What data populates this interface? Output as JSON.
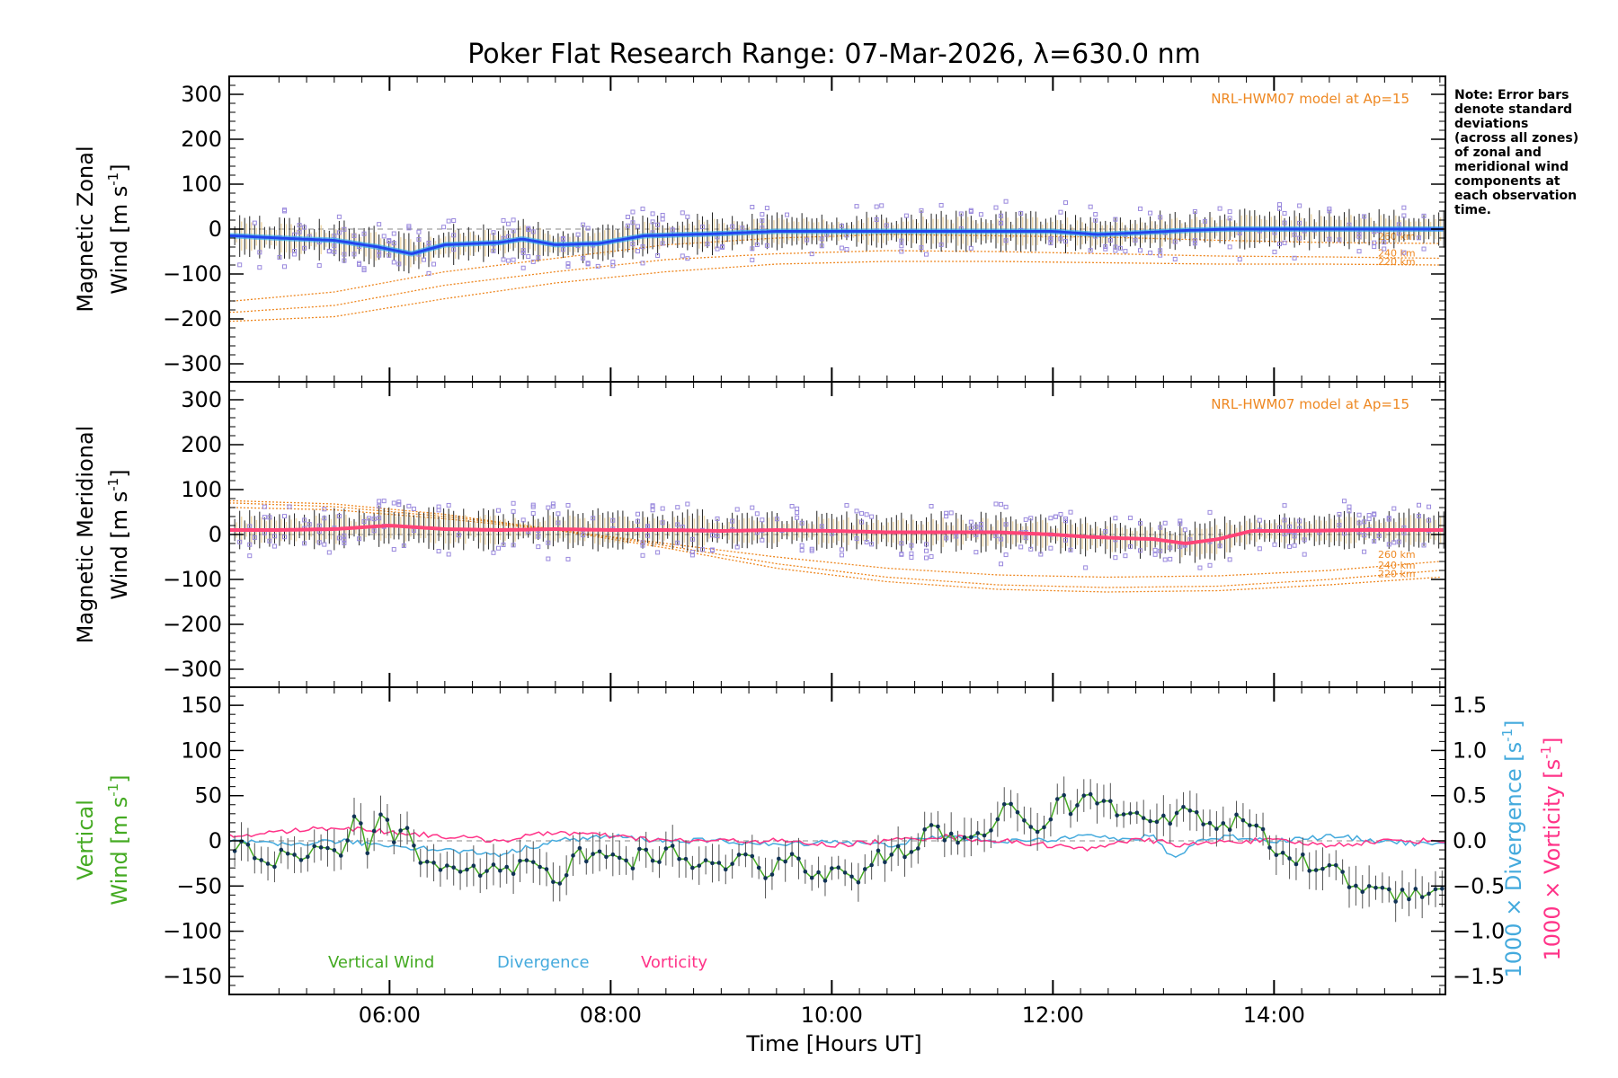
{
  "title": "Poker Flat Research Range: 07-Mar-2026, λ=630.0 nm",
  "note": [
    "Note: Error bars",
    "denote standard",
    "deviations",
    "(across all zones)",
    "of zonal and",
    "meridional wind",
    "components at",
    "each observation",
    "time."
  ],
  "colors": {
    "model": "#ee8822",
    "zonal": "#2244ee",
    "zonal_fit": "#33aaee",
    "meridional": "#ff4477",
    "zones": "#9988dd",
    "vertical": "#44aa22",
    "divergence": "#44aadd",
    "vorticity": "#ff3388",
    "errorbar": "#000000",
    "point": "#113355"
  },
  "xaxis": {
    "label": "Time [Hours UT]",
    "range": [
      4.55,
      15.55
    ],
    "major_ticks": [
      6,
      8,
      10,
      12,
      14
    ],
    "tick_labels": [
      "06:00",
      "08:00",
      "10:00",
      "12:00",
      "14:00"
    ]
  },
  "chart_data": [
    {
      "type": "line",
      "panel": "zonal",
      "ylabel_line1": "Magnetic Zonal",
      "ylabel_line2": "Wind [m s",
      "ylabel_sup": "-1",
      "ylabel_close": "]",
      "ylim": [
        -340,
        340
      ],
      "yticks": [
        300,
        200,
        100,
        0,
        -100,
        -200,
        -300
      ],
      "yticklabels": [
        "300",
        "200",
        "100",
        "0",
        "−100",
        "−200",
        "−300"
      ],
      "model_label": "NRL-HWM07 model at Ap=15",
      "altitude_labels": [
        "260 km",
        "240 km",
        "220 km"
      ],
      "observed": {
        "name": "Magnetic zonal wind",
        "x": [
          4.6,
          5.0,
          5.5,
          5.9,
          6.2,
          6.5,
          7.0,
          7.2,
          7.5,
          7.9,
          8.3,
          9.0,
          9.5,
          10.0,
          10.5,
          11.0,
          11.5,
          12.0,
          12.4,
          12.8,
          13.2,
          13.6,
          14.0,
          14.5,
          15.0,
          15.5
        ],
        "values": [
          -15,
          -20,
          -25,
          -40,
          -55,
          -35,
          -30,
          -22,
          -35,
          -32,
          -15,
          -10,
          -5,
          -5,
          -5,
          -5,
          -5,
          -5,
          -12,
          -8,
          -3,
          0,
          0,
          0,
          0,
          0
        ]
      },
      "model": [
        {
          "altitude": "260 km",
          "x": [
            4.6,
            5.5,
            6.5,
            7.5,
            8.5,
            9.5,
            10.5,
            11.5,
            12.5,
            13.5,
            14.5,
            15.5
          ],
          "values": [
            -160,
            -140,
            -95,
            -65,
            -35,
            -20,
            -12,
            -15,
            -18,
            -25,
            -30,
            -32
          ]
        },
        {
          "altitude": "240 km",
          "x": [
            4.6,
            5.5,
            6.5,
            7.5,
            8.5,
            9.5,
            10.5,
            11.5,
            12.5,
            13.5,
            14.5,
            15.5
          ],
          "values": [
            -185,
            -170,
            -125,
            -95,
            -68,
            -55,
            -48,
            -50,
            -55,
            -60,
            -62,
            -65
          ]
        },
        {
          "altitude": "220 km",
          "x": [
            4.6,
            5.5,
            6.5,
            7.5,
            8.5,
            9.5,
            10.5,
            11.5,
            12.5,
            13.5,
            14.5,
            15.5
          ],
          "values": [
            -205,
            -195,
            -155,
            -120,
            -95,
            -78,
            -72,
            -72,
            -75,
            -78,
            -78,
            -80
          ]
        }
      ]
    },
    {
      "type": "line",
      "panel": "meridional",
      "ylabel_line1": "Magnetic Meridional",
      "ylabel_line2": "Wind [m s",
      "ylabel_sup": "-1",
      "ylabel_close": "]",
      "ylim": [
        -340,
        340
      ],
      "yticks": [
        300,
        200,
        100,
        0,
        -100,
        -200,
        -300
      ],
      "yticklabels": [
        "300",
        "200",
        "100",
        "0",
        "−100",
        "−200",
        "−300"
      ],
      "model_label": "NRL-HWM07 model at Ap=15",
      "altitude_labels": [
        "260 km",
        "240 km",
        "220 km"
      ],
      "observed": {
        "name": "Magnetic meridional wind",
        "x": [
          4.6,
          5.0,
          5.5,
          6.0,
          6.5,
          7.0,
          7.5,
          8.0,
          8.5,
          9.0,
          9.5,
          10.0,
          10.5,
          11.0,
          11.5,
          12.0,
          12.3,
          12.6,
          12.9,
          13.2,
          13.5,
          13.8,
          14.2,
          14.8,
          15.5
        ],
        "values": [
          10,
          10,
          12,
          20,
          12,
          10,
          12,
          10,
          10,
          8,
          10,
          8,
          5,
          5,
          5,
          0,
          -5,
          -8,
          -10,
          -20,
          -10,
          8,
          8,
          10,
          10
        ]
      },
      "model": [
        {
          "altitude": "260 km",
          "x": [
            4.6,
            5.5,
            6.5,
            7.5,
            8.5,
            9.5,
            10.5,
            11.5,
            12.5,
            13.5,
            14.5,
            15.5
          ],
          "values": [
            60,
            55,
            35,
            10,
            -20,
            -50,
            -75,
            -90,
            -95,
            -92,
            -80,
            -60
          ]
        },
        {
          "altitude": "240 km",
          "x": [
            4.6,
            5.5,
            6.5,
            7.5,
            8.5,
            9.5,
            10.5,
            11.5,
            12.5,
            13.5,
            14.5,
            15.5
          ],
          "values": [
            70,
            62,
            40,
            12,
            -25,
            -65,
            -95,
            -112,
            -118,
            -115,
            -100,
            -80
          ]
        },
        {
          "altitude": "220 km",
          "x": [
            4.6,
            5.5,
            6.5,
            7.5,
            8.5,
            9.5,
            10.5,
            11.5,
            12.5,
            13.5,
            14.5,
            15.5
          ],
          "values": [
            75,
            68,
            45,
            10,
            -30,
            -75,
            -105,
            -122,
            -128,
            -125,
            -112,
            -95
          ]
        }
      ]
    },
    {
      "type": "line",
      "panel": "vertical",
      "ylabel_line1": "Vertical",
      "ylabel_line2": "Wind [m s",
      "ylabel_sup": "-1",
      "ylabel_close": "]",
      "ylim": [
        -170,
        170
      ],
      "yticks": [
        150,
        100,
        50,
        0,
        -50,
        -100,
        -150
      ],
      "yticklabels": [
        "150",
        "100",
        "50",
        "0",
        "−50",
        "−100",
        "−150"
      ],
      "y2label_div": "1000 × Divergence [s",
      "y2label_vort": "1000 × Vorticity [s",
      "y2label_sup": "-1",
      "y2label_close": "]",
      "y2lim": [
        -1.7,
        1.7
      ],
      "y2ticks": [
        1.5,
        1.0,
        0.5,
        0.0,
        -0.5,
        -1.0,
        -1.5
      ],
      "y2ticklabels": [
        "1.5",
        "1.0",
        "0.5",
        "0.0",
        "−0.5",
        "−1.0",
        "−1.5"
      ],
      "legend": [
        "Vertical Wind",
        "Divergence",
        "Vorticity"
      ],
      "series": [
        {
          "name": "Vertical Wind",
          "axis": "left",
          "x": [
            4.6,
            4.8,
            4.95,
            5.1,
            5.25,
            5.4,
            5.55,
            5.7,
            5.8,
            5.95,
            6.05,
            6.15,
            6.25,
            6.35,
            6.5,
            6.65,
            6.8,
            6.95,
            7.1,
            7.25,
            7.4,
            7.55,
            7.7,
            7.85,
            8.0,
            8.15,
            8.3,
            8.45,
            8.6,
            8.75,
            8.9,
            9.05,
            9.2,
            9.35,
            9.5,
            9.65,
            9.8,
            9.95,
            10.1,
            10.25,
            10.4,
            10.55,
            10.7,
            10.85,
            11.0,
            11.15,
            11.3,
            11.45,
            11.6,
            11.75,
            11.9,
            12.05,
            12.2,
            12.35,
            12.5,
            12.65,
            12.8,
            12.95,
            13.1,
            13.25,
            13.4,
            13.55,
            13.7,
            13.85,
            14.0,
            14.15,
            14.3,
            14.5,
            14.7,
            14.9,
            15.1,
            15.3,
            15.5
          ],
          "values": [
            -5,
            -15,
            -25,
            -10,
            -20,
            5,
            -25,
            30,
            -10,
            40,
            -15,
            20,
            -20,
            -30,
            -25,
            -30,
            -35,
            -25,
            -35,
            -20,
            -30,
            -45,
            -15,
            -20,
            -10,
            -25,
            -15,
            -20,
            -10,
            -30,
            -20,
            -25,
            -15,
            -35,
            -30,
            -20,
            -35,
            -40,
            -30,
            -45,
            -20,
            -10,
            -20,
            15,
            5,
            0,
            10,
            15,
            40,
            20,
            15,
            45,
            35,
            50,
            40,
            30,
            35,
            25,
            20,
            40,
            20,
            10,
            25,
            15,
            -10,
            -20,
            -25,
            -30,
            -45,
            -55,
            -60,
            -55,
            -50
          ]
        },
        {
          "name": "Divergence",
          "axis": "right",
          "x": [
            4.6,
            5.0,
            5.5,
            6.0,
            6.5,
            7.0,
            7.5,
            8.0,
            8.5,
            9.0,
            9.5,
            10.0,
            10.5,
            11.0,
            11.5,
            12.0,
            12.3,
            12.6,
            12.9,
            13.1,
            13.3,
            13.6,
            14.0,
            14.5,
            15.0,
            15.5
          ],
          "values": [
            0.0,
            -0.05,
            0.0,
            -0.05,
            -0.1,
            -0.15,
            0.0,
            0.05,
            0.0,
            0.0,
            -0.05,
            0.0,
            -0.05,
            0.05,
            0.0,
            0.0,
            0.1,
            0.0,
            0.05,
            -0.2,
            0.0,
            0.05,
            0.0,
            0.05,
            0.0,
            -0.05
          ]
        },
        {
          "name": "Vorticity",
          "axis": "right",
          "x": [
            4.6,
            5.0,
            5.5,
            6.0,
            6.5,
            7.0,
            7.5,
            8.0,
            8.5,
            9.0,
            9.5,
            10.0,
            10.5,
            11.0,
            11.5,
            12.0,
            12.3,
            12.6,
            12.9,
            13.2,
            13.6,
            14.0,
            14.5,
            15.0,
            15.5
          ],
          "values": [
            0.05,
            0.1,
            0.15,
            0.1,
            0.05,
            0.0,
            0.1,
            0.05,
            0.0,
            0.0,
            0.0,
            -0.05,
            0.0,
            0.05,
            0.0,
            -0.05,
            -0.1,
            0.0,
            0.0,
            -0.05,
            0.0,
            0.0,
            -0.05,
            0.0,
            0.0
          ]
        }
      ]
    }
  ]
}
